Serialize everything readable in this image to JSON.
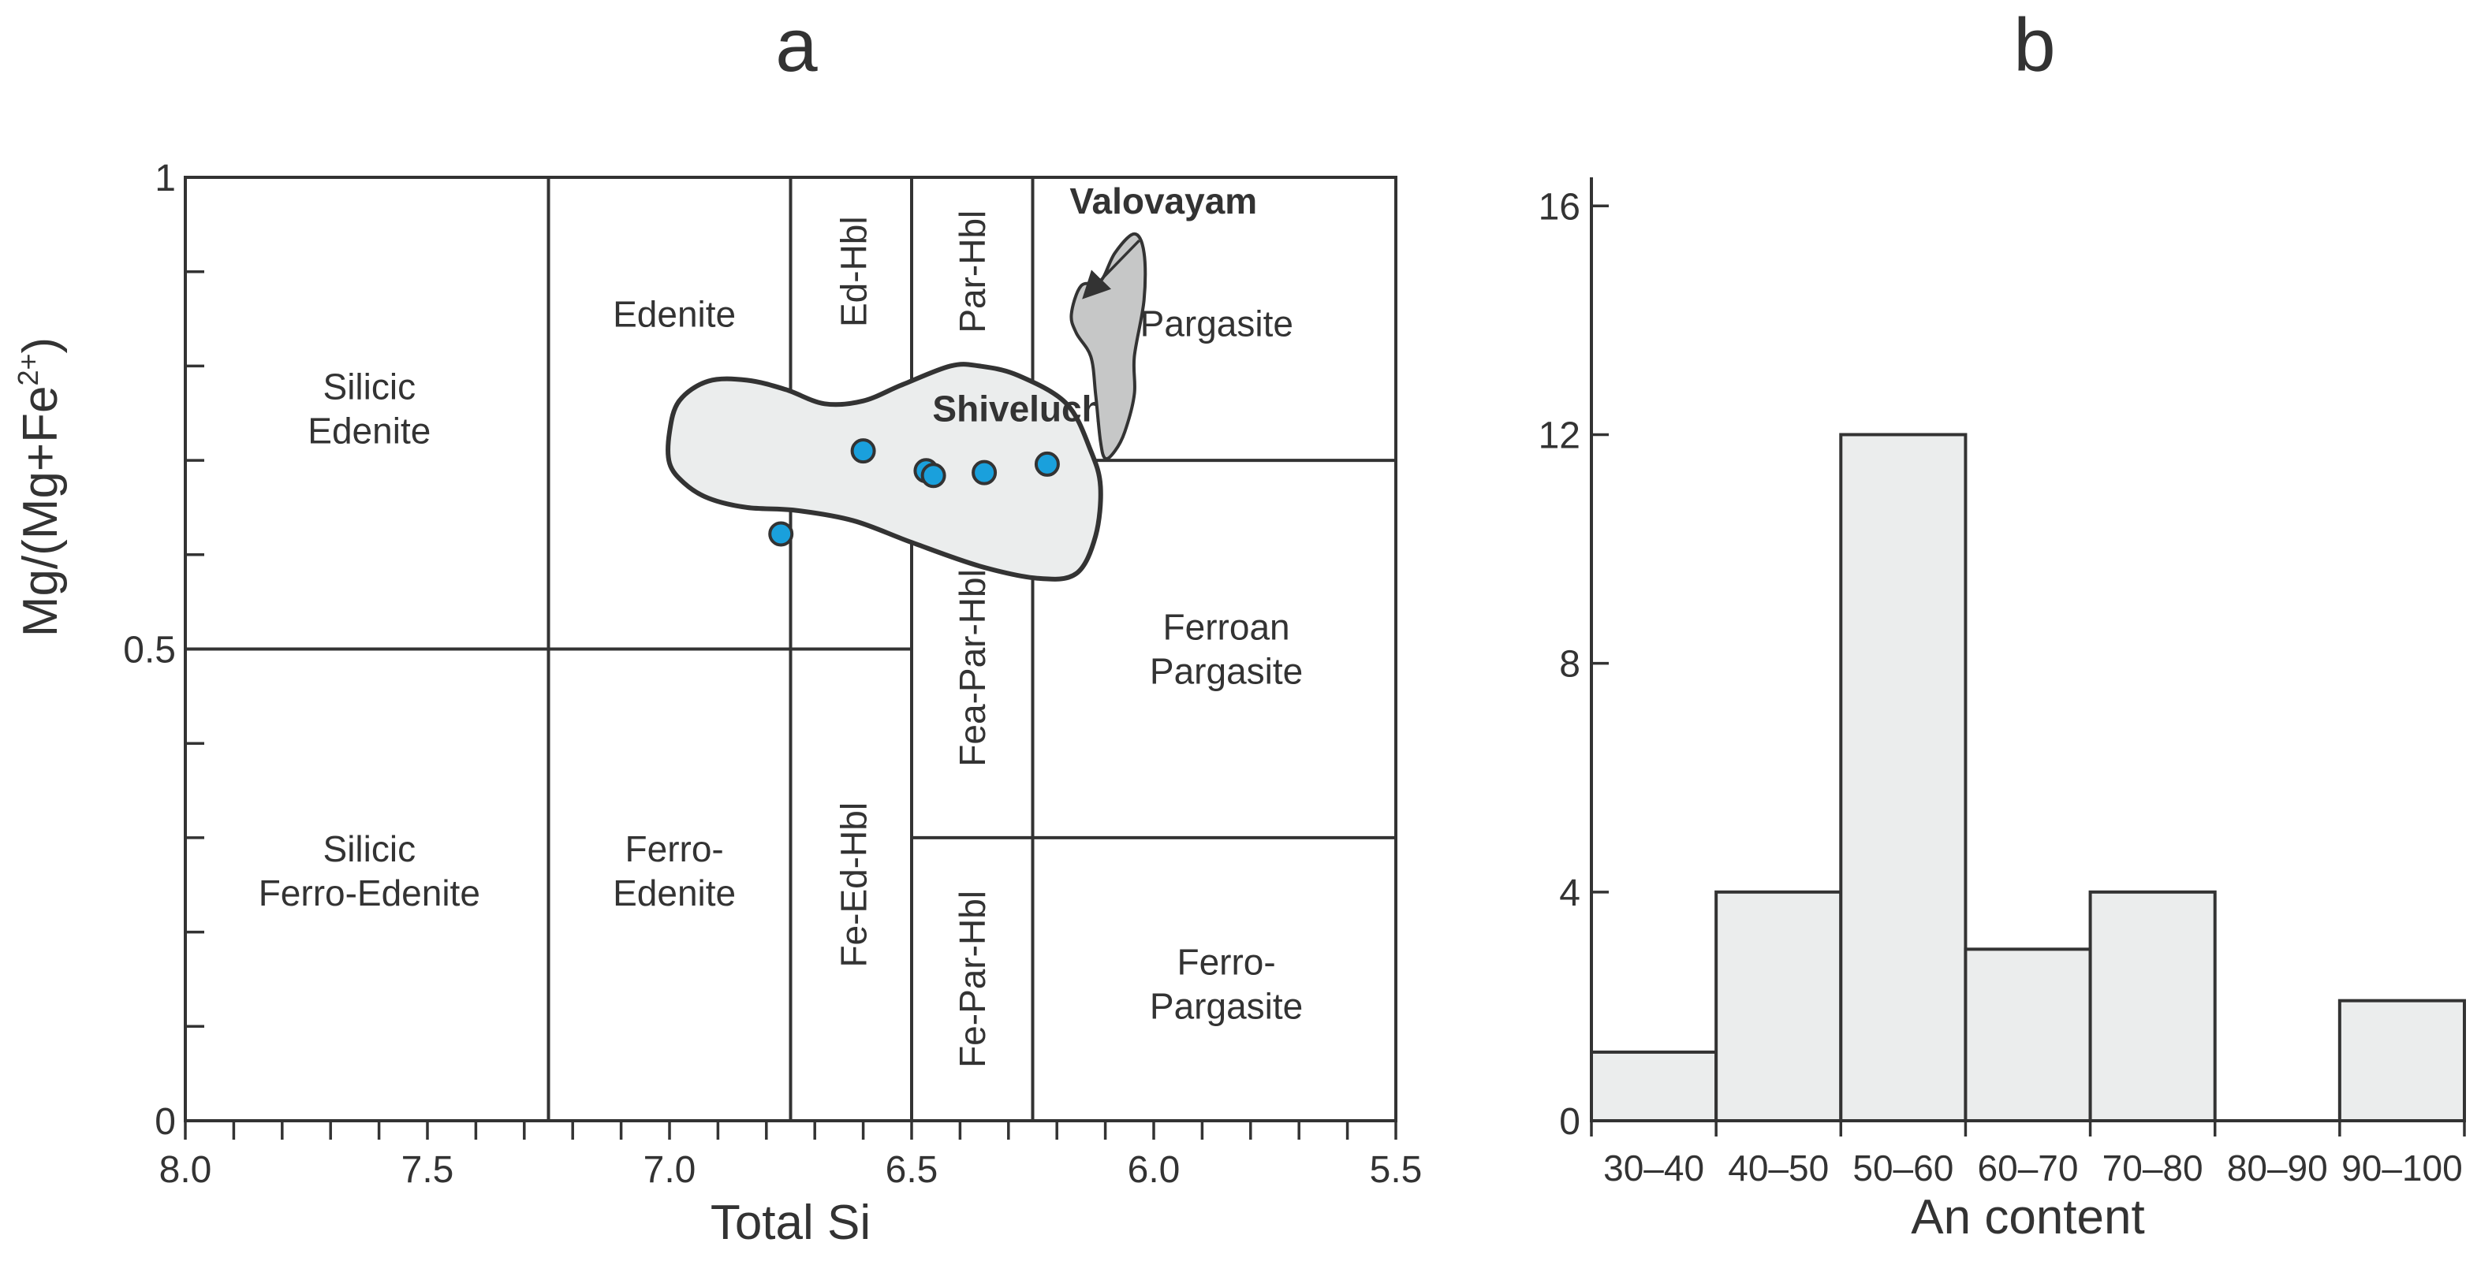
{
  "panels": {
    "a": "a",
    "b": "b"
  },
  "colors": {
    "line": "#333333",
    "shiveluch_fill": "#ebeded",
    "valovayam_fill": "#c6c7c7",
    "point": "#1aa0dc",
    "bar_fill": "#ebeded"
  },
  "chart_data": [
    {
      "type": "scatter",
      "panel": "a",
      "title": "a",
      "xlabel": "Total Si",
      "ylabel": "Mg/(Mg+Fe2+)",
      "ylabel_parts": {
        "main": "Mg/(Mg+Fe",
        "sup": "2+",
        "close": ")"
      },
      "xlim": [
        8.0,
        5.5
      ],
      "ylim": [
        0,
        1
      ],
      "x_ticks": [
        8.0,
        7.9,
        7.8,
        7.7,
        7.6,
        7.5,
        7.4,
        7.3,
        7.2,
        7.1,
        7.0,
        6.9,
        6.8,
        6.7,
        6.6,
        6.5,
        6.4,
        6.3,
        6.2,
        6.1,
        6.0,
        5.9,
        5.8,
        5.7,
        5.6,
        5.5
      ],
      "x_tick_labels": [
        "8.0",
        "7.5",
        "7.0",
        "6.5",
        "6.0",
        "5.5"
      ],
      "y_ticks": [
        0,
        0.1,
        0.2,
        0.3,
        0.4,
        0.5,
        0.6,
        0.7,
        0.8,
        0.9,
        1
      ],
      "y_tick_labels": [
        "0",
        "0.5",
        "1"
      ],
      "boundaries": {
        "vertical": [
          {
            "x": 7.25,
            "y": [
              0,
              1
            ]
          },
          {
            "x": 6.75,
            "y": [
              0,
              1
            ]
          },
          {
            "x": 6.5,
            "y": [
              0,
              1
            ]
          },
          {
            "x": 6.25,
            "y": [
              0,
              1
            ]
          }
        ],
        "horizontal": [
          {
            "y": 0.5,
            "x": [
              8.0,
              6.5
            ]
          },
          {
            "y": 0.7,
            "x": [
              6.5,
              5.5
            ]
          },
          {
            "y": 0.3,
            "x": [
              6.5,
              5.5
            ]
          }
        ]
      },
      "fields": [
        {
          "name": "Silicic Edenite",
          "lines": [
            "Silicic",
            "Edenite"
          ],
          "x": 7.62,
          "y": 0.755
        },
        {
          "name": "Edenite",
          "lines": [
            "Edenite"
          ],
          "x": 6.99,
          "y": 0.855
        },
        {
          "name": "Ed-Hbl",
          "lines": [
            "Ed-Hbl"
          ],
          "x": 6.62,
          "y": 0.9,
          "vertical": true
        },
        {
          "name": "Par-Hbl",
          "lines": [
            "Par-Hbl"
          ],
          "x": 6.375,
          "y": 0.9,
          "vertical": true
        },
        {
          "name": "Pargasite",
          "lines": [
            "Pargasite"
          ],
          "x": 5.87,
          "y": 0.845
        },
        {
          "name": "Fea-Par-Hbl",
          "lines": [
            "Fea-Par-Hbl"
          ],
          "x": 6.375,
          "y": 0.48,
          "vertical": true
        },
        {
          "name": "Ferroan Pargasite",
          "lines": [
            "Ferroan",
            "Pargasite"
          ],
          "x": 5.85,
          "y": 0.5
        },
        {
          "name": "Silicic Ferro-Edenite",
          "lines": [
            "Silicic",
            "Ferro-Edenite"
          ],
          "x": 7.62,
          "y": 0.265
        },
        {
          "name": "Ferro-Edenite",
          "lines": [
            "Ferro-",
            "Edenite"
          ],
          "x": 6.99,
          "y": 0.265
        },
        {
          "name": "Fe-Ed-Hbl",
          "lines": [
            "Fe-Ed-Hbl"
          ],
          "x": 6.62,
          "y": 0.25,
          "vertical": true
        },
        {
          "name": "Fe-Par-Hbl",
          "lines": [
            "Fe-Par-Hbl"
          ],
          "x": 6.375,
          "y": 0.15,
          "vertical": true
        },
        {
          "name": "Ferro-Pargasite",
          "lines": [
            "Ferro-",
            "Pargasite"
          ],
          "x": 5.85,
          "y": 0.145
        }
      ],
      "fields_labels": {
        "Silicic Edenite": [
          "Silicic",
          "Edenite"
        ],
        "Edenite": [
          "Edenite"
        ],
        "Ed-Hbl": [
          "Ed-Hbl"
        ],
        "Par-Hbl": [
          "Par-Hbl"
        ],
        "Pargasite": [
          "Pargasite"
        ],
        "Fea-Par-Hbl": [
          "Fea-Par-Hbl"
        ],
        "Ferroan Pargasite": [
          "Ferroan",
          "Pargasite"
        ],
        "Silicic Ferro-Edenite": [
          "Silicic",
          "Ferro-Edenite"
        ],
        "Ferro-Edenite": [
          "Ferro-",
          "Edenite"
        ],
        "Fe-Ed-Hbl": [
          "Fe-Ed-Hbl"
        ],
        "Fe-Par-Hbl": [
          "Fe-Par-Hbl"
        ],
        "Ferro-Pargasite": [
          "Ferro-",
          "Pargasite"
        ]
      },
      "regions": [
        {
          "name": "Shiveluch",
          "label_x": 6.28,
          "label_y": 0.755,
          "outline": [
            [
              7.0,
              0.697
            ],
            [
              6.97,
              0.676
            ],
            [
              6.92,
              0.66
            ],
            [
              6.84,
              0.65
            ],
            [
              6.74,
              0.647
            ],
            [
              6.62,
              0.636
            ],
            [
              6.5,
              0.613
            ],
            [
              6.36,
              0.588
            ],
            [
              6.24,
              0.575
            ],
            [
              6.16,
              0.58
            ],
            [
              6.12,
              0.62
            ],
            [
              6.11,
              0.672
            ],
            [
              6.13,
              0.71
            ],
            [
              6.18,
              0.76
            ],
            [
              6.28,
              0.79
            ],
            [
              6.36,
              0.8
            ],
            [
              6.42,
              0.8
            ],
            [
              6.52,
              0.78
            ],
            [
              6.6,
              0.763
            ],
            [
              6.68,
              0.76
            ],
            [
              6.76,
              0.775
            ],
            [
              6.84,
              0.785
            ],
            [
              6.92,
              0.784
            ],
            [
              6.98,
              0.763
            ],
            [
              7.0,
              0.73
            ]
          ]
        },
        {
          "name": "Valovayam",
          "label_x": 5.98,
          "label_y": 0.975,
          "arrow": [
            [
              6.03,
              0.933
            ],
            [
              6.14,
              0.875
            ]
          ],
          "outline": [
            [
              6.15,
              0.885
            ],
            [
              6.11,
              0.89
            ],
            [
              6.08,
              0.92
            ],
            [
              6.04,
              0.94
            ],
            [
              6.02,
              0.92
            ],
            [
              6.02,
              0.87
            ],
            [
              6.04,
              0.81
            ],
            [
              6.04,
              0.77
            ],
            [
              6.06,
              0.73
            ],
            [
              6.08,
              0.71
            ],
            [
              6.1,
              0.702
            ],
            [
              6.11,
              0.72
            ],
            [
              6.12,
              0.77
            ],
            [
              6.13,
              0.81
            ],
            [
              6.16,
              0.835
            ],
            [
              6.17,
              0.855
            ]
          ]
        }
      ],
      "regions_labels": {
        "Shiveluch": "Shiveluch",
        "Valovayam": "Valovayam"
      },
      "points": [
        {
          "x": 6.6,
          "y": 0.71
        },
        {
          "x": 6.77,
          "y": 0.622
        },
        {
          "x": 6.47,
          "y": 0.689
        },
        {
          "x": 6.455,
          "y": 0.684
        },
        {
          "x": 6.35,
          "y": 0.687
        },
        {
          "x": 6.22,
          "y": 0.696
        }
      ]
    },
    {
      "type": "bar",
      "panel": "b",
      "title": "b",
      "xlabel": "An content",
      "ylabel": "",
      "categories": [
        "30–40",
        "40–50",
        "50–60",
        "60–70",
        "70–80",
        "80–90",
        "90–100"
      ],
      "values": [
        1.2,
        4,
        12,
        3,
        4,
        0,
        2.1
      ],
      "ylim": [
        0,
        16.5
      ],
      "y_ticks": [
        0,
        4,
        8,
        12,
        16
      ],
      "y_tick_labels": [
        "0",
        "4",
        "8",
        "12",
        "16"
      ]
    }
  ]
}
